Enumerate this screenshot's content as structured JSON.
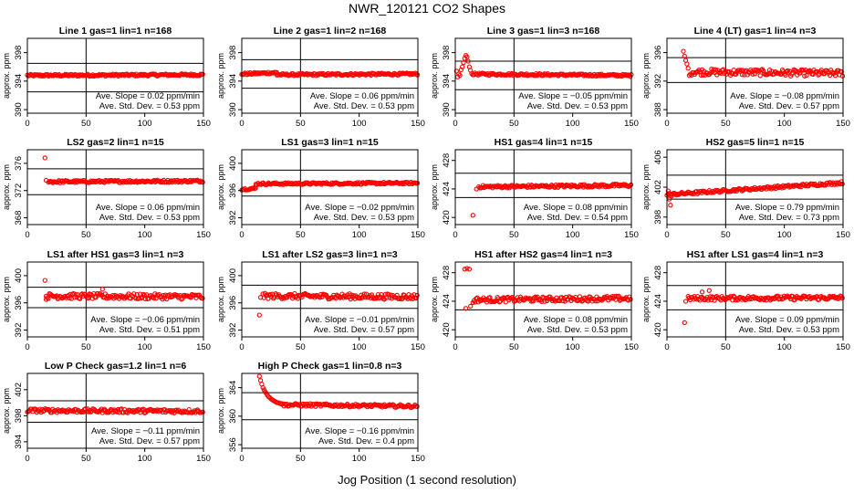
{
  "figure": {
    "title": "NWR_120121  CO2 Shapes",
    "xlabel": "Jog Position (1 second resolution)",
    "point_color": "#ff0000",
    "line_color": "#000000",
    "background": "#ffffff"
  },
  "chart_data": [
    {
      "type": "scatter",
      "title": "Line 1 gas=1 lin=1 n=168",
      "ylabel": "approx. ppm",
      "xlim": [
        0,
        150
      ],
      "ylim": [
        389.5,
        400
      ],
      "xticks": [
        0,
        50,
        100,
        150
      ],
      "yticks": [
        390,
        394,
        398
      ],
      "vline": 50,
      "hlines": [
        392.5,
        396.5
      ],
      "slope": "Ave. Slope =  0.02  ppm/min",
      "stddev": "Ave. Std. Dev. =  0.53  ppm",
      "segments": [
        {
          "x0": 0,
          "x1": 150,
          "y0": 394.8,
          "y1": 394.9,
          "noise": 0.15
        }
      ],
      "outliers": []
    },
    {
      "type": "scatter",
      "title": "Line 2 gas=1 lin=2 n=168",
      "ylabel": "approx. ppm",
      "xlim": [
        0,
        150
      ],
      "ylim": [
        389.5,
        400
      ],
      "xticks": [
        0,
        50,
        100,
        150
      ],
      "yticks": [
        390,
        394,
        398
      ],
      "vline": 50,
      "hlines": [
        393,
        397
      ],
      "slope": "Ave. Slope =  0.06  ppm/min",
      "stddev": "Ave. Std. Dev. =  0.53  ppm",
      "segments": [
        {
          "x0": 0,
          "x1": 30,
          "y0": 395.0,
          "y1": 395.2,
          "noise": 0.15
        },
        {
          "x0": 30,
          "x1": 150,
          "y0": 394.9,
          "y1": 395.0,
          "noise": 0.15
        }
      ],
      "outliers": []
    },
    {
      "type": "scatter",
      "title": "Line 3 gas=1 lin=3 n=168",
      "ylabel": "approx. ppm",
      "xlim": [
        0,
        150
      ],
      "ylim": [
        389.5,
        400
      ],
      "xticks": [
        0,
        50,
        100,
        150
      ],
      "yticks": [
        390,
        394,
        398
      ],
      "vline": 50,
      "hlines": [
        392.8,
        396.8
      ],
      "slope": "Ave. Slope =  −0.05  ppm/min",
      "stddev": "Ave. Std. Dev. =  0.53  ppm",
      "segments": [
        {
          "x0": 14,
          "x1": 150,
          "y0": 395.0,
          "y1": 394.8,
          "noise": 0.15
        }
      ],
      "outliers": [
        [
          1,
          395.4
        ],
        [
          2,
          394.6
        ],
        [
          3,
          395.0
        ],
        [
          4,
          394.8
        ],
        [
          5,
          395.6
        ],
        [
          6,
          396.0
        ],
        [
          7,
          396.6
        ],
        [
          8,
          397.2
        ],
        [
          9,
          397.6
        ],
        [
          10,
          397.4
        ],
        [
          11,
          396.8
        ],
        [
          12,
          396.0
        ],
        [
          13,
          395.5
        ]
      ]
    },
    {
      "type": "scatter",
      "title": "Line 4 (LT) gas=1 lin=4 n=3",
      "ylabel": "approx. ppm",
      "xlim": [
        0,
        150
      ],
      "ylim": [
        387.5,
        398
      ],
      "xticks": [
        0,
        50,
        100,
        150
      ],
      "yticks": [
        388,
        392,
        396
      ],
      "vline": 50,
      "hlines": [
        391.8,
        395.3
      ],
      "slope": "Ave. Slope =  −0.08  ppm/min",
      "stddev": "Ave. Std. Dev. =  0.57  ppm",
      "segments": [
        {
          "x0": 20,
          "x1": 150,
          "y0": 393.3,
          "y1": 393.1,
          "noise": 0.45
        }
      ],
      "outliers": [
        [
          14,
          396.2
        ],
        [
          15,
          395.5
        ],
        [
          16,
          394.9
        ],
        [
          17,
          394.4
        ],
        [
          18,
          393.8
        ],
        [
          19,
          392.8
        ]
      ]
    },
    {
      "type": "scatter",
      "title": "LS2 gas=2 lin=1 n=15",
      "ylabel": "approx. ppm",
      "xlim": [
        0,
        150
      ],
      "ylim": [
        367,
        378
      ],
      "xticks": [
        0,
        50,
        100,
        150
      ],
      "yticks": [
        368,
        372,
        376
      ],
      "vline": 50,
      "hlines": [
        371.4,
        375.2
      ],
      "slope": "Ave. Slope =  0.06  ppm/min",
      "stddev": "Ave. Std. Dev. =  0.53  ppm",
      "segments": [
        {
          "x0": 18,
          "x1": 150,
          "y0": 373.3,
          "y1": 373.4,
          "noise": 0.18
        }
      ],
      "outliers": [
        [
          15,
          376.8
        ],
        [
          16,
          373.5
        ]
      ]
    },
    {
      "type": "scatter",
      "title": "LS1 gas=3 lin=1 n=15",
      "ylabel": "approx. ppm",
      "xlim": [
        0,
        150
      ],
      "ylim": [
        391,
        402
      ],
      "xticks": [
        0,
        50,
        100,
        150
      ],
      "yticks": [
        392,
        396,
        400
      ],
      "vline": 50,
      "hlines": [
        395.2,
        399.0
      ],
      "slope": "Ave. Slope =  −0.02  ppm/min",
      "stddev": "Ave. Std. Dev. =  0.53  ppm",
      "segments": [
        {
          "x0": 0,
          "x1": 12,
          "y0": 396.2,
          "y1": 396.3,
          "noise": 0.15
        },
        {
          "x0": 12,
          "x1": 150,
          "y0": 397.0,
          "y1": 397.1,
          "noise": 0.15
        }
      ],
      "outliers": []
    },
    {
      "type": "scatter",
      "title": "HS1 gas=4 lin=1 n=15",
      "ylabel": "approx. ppm",
      "xlim": [
        0,
        150
      ],
      "ylim": [
        419,
        429.5
      ],
      "xticks": [
        0,
        50,
        100,
        150
      ],
      "yticks": [
        420,
        424,
        428
      ],
      "vline": 50,
      "hlines": [
        422.8,
        426.2
      ],
      "slope": "Ave. Slope =  0.08  ppm/min",
      "stddev": "Ave. Std. Dev. =  0.54  ppm",
      "segments": [
        {
          "x0": 20,
          "x1": 150,
          "y0": 424.3,
          "y1": 424.5,
          "noise": 0.2
        }
      ],
      "outliers": [
        [
          15,
          420.3
        ],
        [
          18,
          424.0
        ]
      ]
    },
    {
      "type": "scatter",
      "title": "HS2 gas=5 lin=1 n=15",
      "ylabel": "approx. ppm",
      "xlim": [
        0,
        150
      ],
      "ylim": [
        397,
        407
      ],
      "xticks": [
        0,
        50,
        100,
        150
      ],
      "yticks": [
        398,
        402,
        406
      ],
      "vline": 50,
      "hlines": [
        400.4,
        403.6
      ],
      "slope": "Ave. Slope =  0.79  ppm/min",
      "stddev": "Ave. Std. Dev. =  0.73  ppm",
      "segments": [
        {
          "x0": 0,
          "x1": 150,
          "y0": 401.0,
          "y1": 402.6,
          "noise": 0.18
        }
      ],
      "outliers": [
        [
          1,
          401.5
        ],
        [
          2,
          400.4
        ],
        [
          3,
          399.6
        ],
        [
          4,
          400.8
        ]
      ]
    },
    {
      "type": "scatter",
      "title": "LS1 after HS1 gas=3 lin=1 n=3",
      "ylabel": "approx. ppm",
      "xlim": [
        0,
        150
      ],
      "ylim": [
        391,
        402
      ],
      "xticks": [
        0,
        50,
        100,
        150
      ],
      "yticks": [
        392,
        396,
        400
      ],
      "vline": 50,
      "hlines": [
        395.3,
        398.3
      ],
      "slope": "Ave. Slope =  −0.06  ppm/min",
      "stddev": "Ave. Std. Dev. =  0.51  ppm",
      "segments": [
        {
          "x0": 16,
          "x1": 150,
          "y0": 397.0,
          "y1": 396.9,
          "noise": 0.4
        }
      ],
      "outliers": [
        [
          15,
          399.3
        ],
        [
          16,
          396.5
        ],
        [
          64,
          398.0
        ]
      ]
    },
    {
      "type": "scatter",
      "title": "LS1 after LS2 gas=3 lin=1 n=3",
      "ylabel": "approx. ppm",
      "xlim": [
        0,
        150
      ],
      "ylim": [
        391,
        402
      ],
      "xticks": [
        0,
        50,
        100,
        150
      ],
      "yticks": [
        392,
        396,
        400
      ],
      "vline": 50,
      "hlines": [
        395.2,
        398.6
      ],
      "slope": "Ave. Slope =  −0.01  ppm/min",
      "stddev": "Ave. Std. Dev. =  0.57  ppm",
      "segments": [
        {
          "x0": 18,
          "x1": 150,
          "y0": 397.0,
          "y1": 396.9,
          "noise": 0.4
        }
      ],
      "outliers": [
        [
          15,
          394.2
        ],
        [
          16,
          396.8
        ]
      ]
    },
    {
      "type": "scatter",
      "title": "HS1 after HS2 gas=4 lin=1 n=3",
      "ylabel": "approx. ppm",
      "xlim": [
        0,
        150
      ],
      "ylim": [
        419,
        429.5
      ],
      "xticks": [
        0,
        50,
        100,
        150
      ],
      "yticks": [
        420,
        424,
        428
      ],
      "vline": 50,
      "hlines": [
        422.8,
        426.2
      ],
      "slope": "Ave. Slope =  0.08  ppm/min",
      "stddev": "Ave. Std. Dev. =  0.53  ppm",
      "segments": [
        {
          "x0": 16,
          "x1": 150,
          "y0": 424.2,
          "y1": 424.4,
          "noise": 0.35
        }
      ],
      "outliers": [
        [
          8,
          428.5
        ],
        [
          10,
          428.6
        ],
        [
          12,
          428.5
        ],
        [
          9,
          423.0
        ],
        [
          13,
          423.3
        ],
        [
          15,
          423.8
        ]
      ]
    },
    {
      "type": "scatter",
      "title": "HS1 after LS1 gas=4 lin=1 n=3",
      "ylabel": "approx. ppm",
      "xlim": [
        0,
        150
      ],
      "ylim": [
        419,
        429.5
      ],
      "xticks": [
        0,
        50,
        100,
        150
      ],
      "yticks": [
        420,
        424,
        428
      ],
      "vline": 50,
      "hlines": [
        422.8,
        426.2
      ],
      "slope": "Ave. Slope =  0.09  ppm/min",
      "stddev": "Ave. Std. Dev. =  0.53  ppm",
      "segments": [
        {
          "x0": 18,
          "x1": 150,
          "y0": 424.4,
          "y1": 424.5,
          "noise": 0.3
        }
      ],
      "outliers": [
        [
          15,
          421.0
        ],
        [
          16,
          424.0
        ],
        [
          30,
          425.3
        ],
        [
          36,
          425.5
        ]
      ]
    },
    {
      "type": "scatter",
      "title": "Low P Check gas=1.2 lin=1 n=6",
      "ylabel": "approx. ppm",
      "xlim": [
        0,
        150
      ],
      "ylim": [
        393,
        404.5
      ],
      "xticks": [
        0,
        50,
        100,
        150
      ],
      "yticks": [
        394,
        398,
        402
      ],
      "vline": 50,
      "hlines": [
        397.0,
        400.3
      ],
      "slope": "Ave. Slope =  −0.11  ppm/min",
      "stddev": "Ave. Std. Dev. =  0.57  ppm",
      "segments": [
        {
          "x0": 0,
          "x1": 150,
          "y0": 398.8,
          "y1": 398.7,
          "noise": 0.3
        }
      ],
      "outliers": []
    },
    {
      "type": "scatter",
      "title": "High P Check gas=1 lin=0.8 n=3",
      "ylabel": "approx. ppm",
      "xlim": [
        0,
        150
      ],
      "ylim": [
        355.5,
        366
      ],
      "xticks": [
        0,
        50,
        100,
        150
      ],
      "yticks": [
        356,
        360,
        364
      ],
      "vline": 50,
      "hlines": [
        359.5,
        363.3
      ],
      "slope": "Ave. Slope =  −0.16  ppm/min",
      "stddev": "Ave. Std. Dev. =  0.4  ppm",
      "segments": [
        {
          "x0": 35,
          "x1": 150,
          "y0": 361.6,
          "y1": 361.4,
          "noise": 0.2
        }
      ],
      "outliers": [
        [
          15,
          365.6
        ],
        [
          16,
          365.0
        ],
        [
          17,
          364.5
        ],
        [
          18,
          364.0
        ],
        [
          19,
          363.7
        ],
        [
          20,
          363.4
        ],
        [
          21,
          363.2
        ],
        [
          22,
          362.9
        ],
        [
          23,
          362.7
        ],
        [
          24,
          362.6
        ],
        [
          25,
          362.4
        ],
        [
          26,
          362.3
        ],
        [
          27,
          362.2
        ],
        [
          28,
          362.1
        ],
        [
          29,
          362.0
        ],
        [
          30,
          361.9
        ],
        [
          31,
          361.9
        ],
        [
          32,
          361.8
        ],
        [
          33,
          361.8
        ],
        [
          34,
          361.7
        ]
      ]
    }
  ]
}
